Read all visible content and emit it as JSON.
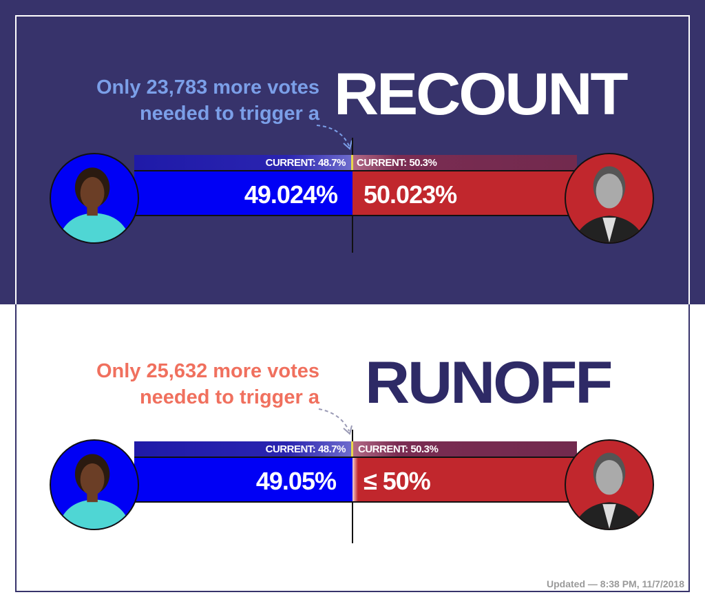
{
  "colors": {
    "top_bg": "#37336b",
    "recount_lead": "#7b9fe8",
    "runoff_lead": "#f0705e",
    "runoff_title": "#2e2a66",
    "blue": "#0000f5",
    "red": "#c1272d",
    "current_marker": "#e8d84a"
  },
  "recount": {
    "line1": "Only 23,783 more votes",
    "line2": "needed to trigger a",
    "title": "RECOUNT",
    "left_current": "CURRENT: 48.7%",
    "right_current": "CURRENT: 50.3%",
    "left_value": "49.024%",
    "right_value": "50.023%"
  },
  "runoff": {
    "line1": "Only 25,632 more votes",
    "line2": "needed to trigger a",
    "title": "RUNOFF",
    "left_current": "CURRENT: 48.7%",
    "right_current": "CURRENT: 50.3%",
    "left_value": "49.05%",
    "right_value": "≤ 50%"
  },
  "footer": {
    "updated": "Updated — 8:38 PM, 11/7/2018"
  }
}
